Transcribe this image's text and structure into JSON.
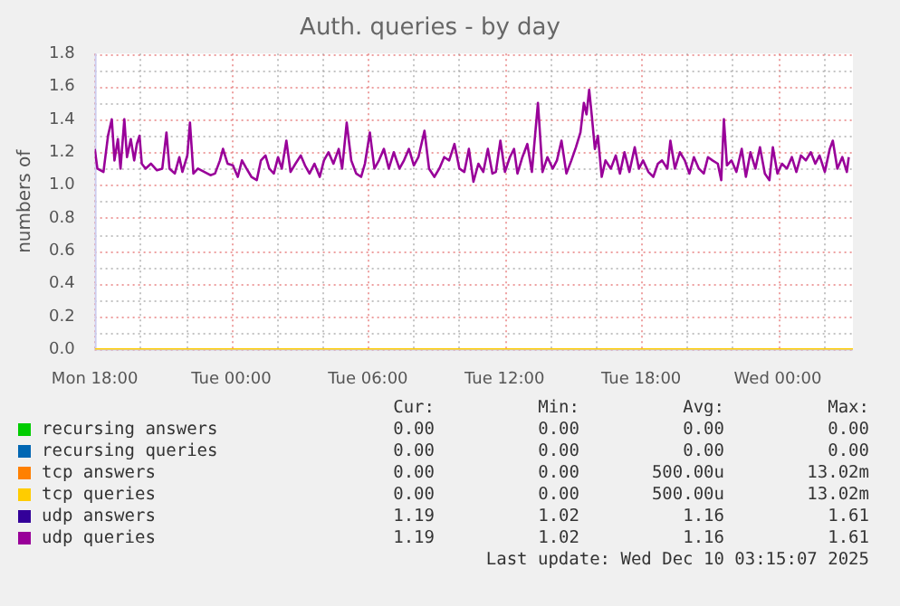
{
  "chart_data": {
    "type": "line",
    "title": "Auth. queries - by day",
    "ylabel": "numbers of",
    "marker": "none",
    "grid": true,
    "legend": "bottom",
    "xlim": [
      "2025-12-08T18:00",
      "2025-12-10T03:18"
    ],
    "xticks": [
      {
        "value": "2025-12-08T18:00",
        "label": "Mon 18:00"
      },
      {
        "value": "2025-12-08T20:00",
        "label": null
      },
      {
        "value": "2025-12-08T22:00",
        "label": null
      },
      {
        "value": "2025-12-09T00:00",
        "label": "Tue 00:00"
      },
      {
        "value": "2025-12-09T02:00",
        "label": null
      },
      {
        "value": "2025-12-09T04:00",
        "label": null
      },
      {
        "value": "2025-12-09T06:00",
        "label": "Tue 06:00"
      },
      {
        "value": "2025-12-09T08:00",
        "label": null
      },
      {
        "value": "2025-12-09T10:00",
        "label": null
      },
      {
        "value": "2025-12-09T12:00",
        "label": "Tue 12:00"
      },
      {
        "value": "2025-12-09T14:00",
        "label": null
      },
      {
        "value": "2025-12-09T16:00",
        "label": null
      },
      {
        "value": "2025-12-09T18:00",
        "label": "Tue 18:00"
      },
      {
        "value": "2025-12-09T20:00",
        "label": null
      },
      {
        "value": "2025-12-09T22:00",
        "label": null
      },
      {
        "value": "2025-12-10T00:00",
        "label": "Wed 00:00"
      },
      {
        "value": "2025-12-10T02:00",
        "label": null
      }
    ],
    "ylim": [
      0,
      1.8
    ],
    "yticks": [
      {
        "value": 0,
        "label": "0.0"
      },
      {
        "value": 0.1,
        "label": null
      },
      {
        "value": 0.2,
        "label": "0.2"
      },
      {
        "value": 0.3,
        "label": null
      },
      {
        "value": 0.4,
        "label": "0.4"
      },
      {
        "value": 0.5,
        "label": null
      },
      {
        "value": 0.6,
        "label": "0.6"
      },
      {
        "value": 0.7,
        "label": null
      },
      {
        "value": 0.8,
        "label": "0.8"
      },
      {
        "value": 0.9,
        "label": null
      },
      {
        "value": 1,
        "label": "1.0"
      },
      {
        "value": 1.1,
        "label": null
      },
      {
        "value": 1.2,
        "label": "1.2"
      },
      {
        "value": 1.3,
        "label": null
      },
      {
        "value": 1.4,
        "label": "1.4"
      },
      {
        "value": 1.5,
        "label": null
      },
      {
        "value": 1.6,
        "label": "1.6"
      },
      {
        "value": 1.7,
        "label": null
      },
      {
        "value": 1.8,
        "label": "1.8"
      }
    ],
    "series": [
      {
        "name": "recursing answers",
        "color": "#00cc00"
      },
      {
        "name": "recursing queries",
        "color": "#0066b3"
      },
      {
        "name": "tcp answers",
        "color": "#ff8000"
      },
      {
        "name": "tcp queries",
        "color": "#ffcc00",
        "x": [
          "2025-12-08T18:00",
          "2025-12-10T03:18"
        ],
        "values": [
          0,
          0
        ]
      },
      {
        "name": "udp answers",
        "color": "#330099"
      },
      {
        "name": "udp queries",
        "color": "#990099",
        "x": [
          "2025-12-08T18:00",
          "2025-12-08T18:07",
          "2025-12-08T18:23",
          "2025-12-08T18:35",
          "2025-12-08T18:45",
          "2025-12-08T18:52",
          "2025-12-08T19:01",
          "2025-12-08T19:08",
          "2025-12-08T19:18",
          "2025-12-08T19:25",
          "2025-12-08T19:35",
          "2025-12-08T19:44",
          "2025-12-08T19:51",
          "2025-12-08T19:58",
          "2025-12-08T20:04",
          "2025-12-08T20:14",
          "2025-12-08T20:28",
          "2025-12-08T20:44",
          "2025-12-08T20:58",
          "2025-12-08T21:09",
          "2025-12-08T21:17",
          "2025-12-08T21:31",
          "2025-12-08T21:43",
          "2025-12-08T21:51",
          "2025-12-08T22:04",
          "2025-12-08T22:11",
          "2025-12-08T22:20",
          "2025-12-08T22:32",
          "2025-12-08T22:49",
          "2025-12-08T23:05",
          "2025-12-08T23:17",
          "2025-12-08T23:30",
          "2025-12-08T23:38",
          "2025-12-08T23:50",
          "2025-12-09T00:04",
          "2025-12-09T00:17",
          "2025-12-09T00:28",
          "2025-12-09T00:40",
          "2025-12-09T00:53",
          "2025-12-09T01:07",
          "2025-12-09T01:18",
          "2025-12-09T01:30",
          "2025-12-09T01:40",
          "2025-12-09T01:52",
          "2025-12-09T02:03",
          "2025-12-09T02:13",
          "2025-12-09T02:25",
          "2025-12-09T02:36",
          "2025-12-09T02:49",
          "2025-12-09T03:03",
          "2025-12-09T03:14",
          "2025-12-09T03:26",
          "2025-12-09T03:39",
          "2025-12-09T03:53",
          "2025-12-09T04:04",
          "2025-12-09T04:16",
          "2025-12-09T04:29",
          "2025-12-09T04:43",
          "2025-12-09T04:52",
          "2025-12-09T05:04",
          "2025-12-09T05:16",
          "2025-12-09T05:29",
          "2025-12-09T05:42",
          "2025-12-09T05:52",
          "2025-12-09T06:05",
          "2025-12-09T06:17",
          "2025-12-09T06:29",
          "2025-12-09T06:42",
          "2025-12-09T06:55",
          "2025-12-09T07:08",
          "2025-12-09T07:23",
          "2025-12-09T07:35",
          "2025-12-09T07:48",
          "2025-12-09T08:01",
          "2025-12-09T08:13",
          "2025-12-09T08:29",
          "2025-12-09T08:41",
          "2025-12-09T08:55",
          "2025-12-09T09:08",
          "2025-12-09T09:21",
          "2025-12-09T09:34",
          "2025-12-09T09:48",
          "2025-12-09T10:01",
          "2025-12-09T10:14",
          "2025-12-09T10:26",
          "2025-12-09T10:38",
          "2025-12-09T10:51",
          "2025-12-09T11:04",
          "2025-12-09T11:16",
          "2025-12-09T11:28",
          "2025-12-09T11:37",
          "2025-12-09T11:49",
          "2025-12-09T12:01",
          "2025-12-09T12:14",
          "2025-12-09T12:25",
          "2025-12-09T12:34",
          "2025-12-09T12:47",
          "2025-12-09T13:00",
          "2025-12-09T13:12",
          "2025-12-09T13:28",
          "2025-12-09T13:40",
          "2025-12-09T13:53",
          "2025-12-09T14:07",
          "2025-12-09T14:18",
          "2025-12-09T14:30",
          "2025-12-09T14:43",
          "2025-12-09T14:56",
          "2025-12-09T15:08",
          "2025-12-09T15:20",
          "2025-12-09T15:29",
          "2025-12-09T15:36",
          "2025-12-09T15:43",
          "2025-12-09T15:50",
          "2025-12-09T15:58",
          "2025-12-09T16:06",
          "2025-12-09T16:16",
          "2025-12-09T16:26",
          "2025-12-09T16:40",
          "2025-12-09T16:53",
          "2025-12-09T17:04",
          "2025-12-09T17:16",
          "2025-12-09T17:29",
          "2025-12-09T17:43",
          "2025-12-09T17:54",
          "2025-12-09T18:05",
          "2025-12-09T18:19",
          "2025-12-09T18:32",
          "2025-12-09T18:44",
          "2025-12-09T18:55",
          "2025-12-09T19:09",
          "2025-12-09T19:17",
          "2025-12-09T19:29",
          "2025-12-09T19:42",
          "2025-12-09T19:55",
          "2025-12-09T20:07",
          "2025-12-09T20:19",
          "2025-12-09T20:32",
          "2025-12-09T20:45",
          "2025-12-09T20:56",
          "2025-12-09T21:08",
          "2025-12-09T21:22",
          "2025-12-09T21:31",
          "2025-12-09T21:38",
          "2025-12-09T21:46",
          "2025-12-09T21:58",
          "2025-12-09T22:11",
          "2025-12-09T22:25",
          "2025-12-09T22:36",
          "2025-12-09T22:48",
          "2025-12-09T23:01",
          "2025-12-09T23:13",
          "2025-12-09T23:26",
          "2025-12-09T23:38",
          "2025-12-09T23:47",
          "2025-12-09T23:59",
          "2025-12-10T00:11",
          "2025-12-10T00:24",
          "2025-12-10T00:37",
          "2025-12-10T00:49",
          "2025-12-10T01:01",
          "2025-12-10T01:14",
          "2025-12-10T01:27",
          "2025-12-10T01:39",
          "2025-12-10T01:50",
          "2025-12-10T02:04",
          "2025-12-10T02:17",
          "2025-12-10T02:25",
          "2025-12-10T02:37",
          "2025-12-10T02:50",
          "2025-12-10T03:02",
          "2025-12-10T03:07"
        ],
        "values": [
          1.22,
          1.1,
          1.08,
          1.3,
          1.4,
          1.15,
          1.28,
          1.1,
          1.4,
          1.17,
          1.28,
          1.15,
          1.25,
          1.3,
          1.13,
          1.1,
          1.13,
          1.09,
          1.1,
          1.32,
          1.1,
          1.07,
          1.17,
          1.08,
          1.18,
          1.38,
          1.07,
          1.1,
          1.08,
          1.06,
          1.07,
          1.15,
          1.22,
          1.13,
          1.12,
          1.05,
          1.15,
          1.1,
          1.05,
          1.03,
          1.15,
          1.18,
          1.1,
          1.07,
          1.17,
          1.1,
          1.27,
          1.08,
          1.13,
          1.18,
          1.12,
          1.07,
          1.13,
          1.05,
          1.15,
          1.2,
          1.13,
          1.22,
          1.1,
          1.38,
          1.15,
          1.07,
          1.05,
          1.13,
          1.32,
          1.1,
          1.15,
          1.22,
          1.1,
          1.2,
          1.1,
          1.15,
          1.22,
          1.12,
          1.17,
          1.33,
          1.1,
          1.05,
          1.1,
          1.17,
          1.15,
          1.25,
          1.1,
          1.08,
          1.22,
          1.02,
          1.13,
          1.08,
          1.22,
          1.07,
          1.08,
          1.27,
          1.08,
          1.17,
          1.22,
          1.07,
          1.17,
          1.25,
          1.08,
          1.5,
          1.08,
          1.17,
          1.1,
          1.15,
          1.27,
          1.07,
          1.15,
          1.23,
          1.32,
          1.5,
          1.43,
          1.58,
          1.42,
          1.22,
          1.3,
          1.05,
          1.15,
          1.1,
          1.18,
          1.07,
          1.2,
          1.08,
          1.23,
          1.1,
          1.15,
          1.08,
          1.05,
          1.13,
          1.15,
          1.1,
          1.27,
          1.1,
          1.2,
          1.15,
          1.07,
          1.17,
          1.1,
          1.07,
          1.17,
          1.15,
          1.13,
          1.03,
          1.4,
          1.12,
          1.15,
          1.08,
          1.22,
          1.05,
          1.2,
          1.1,
          1.23,
          1.07,
          1.03,
          1.23,
          1.07,
          1.13,
          1.1,
          1.17,
          1.08,
          1.18,
          1.15,
          1.2,
          1.13,
          1.18,
          1.08,
          1.22,
          1.27,
          1.1,
          1.17,
          1.08,
          1.17
        ]
      }
    ],
    "annotations": [
      "Cur:",
      "Min:",
      "Avg:",
      "Max:",
      "0.00",
      "0.00",
      "0.00",
      "0.00",
      "0.00",
      "0.00",
      "0.00",
      "0.00",
      "0.00",
      "0.00",
      "500.00u",
      "13.02m",
      "0.00",
      "0.00",
      "500.00u",
      "13.02m",
      "1.19",
      "1.02",
      "1.16",
      "1.61",
      "1.19",
      "1.02",
      "1.16",
      "1.61",
      "Last update: Wed Dec 10 03:15:07 2025"
    ]
  }
}
